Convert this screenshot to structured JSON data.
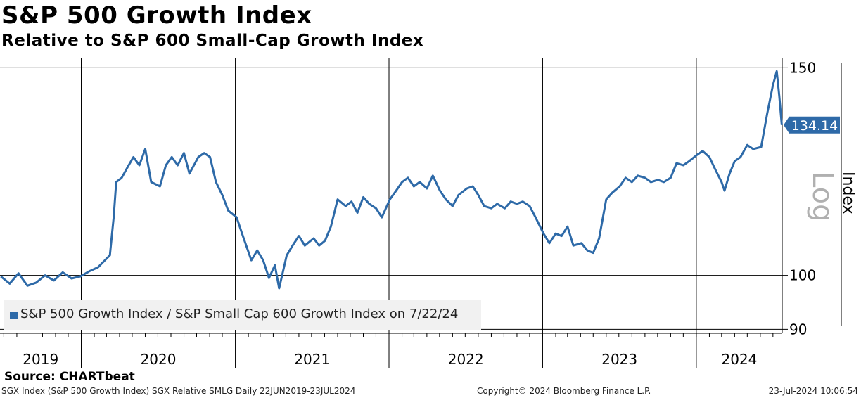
{
  "title": "S&P 500 Growth Index",
  "subtitle": "Relative to S&P 600 Small-Cap Growth Index",
  "source": "Source: CHARTbeat",
  "footer": {
    "left": "SGX Index (S&P 500 Growth Index) SGX Relative SMLG  Daily 22JUN2019-23JUL2024",
    "middle": "Copyright© 2024 Bloomberg Finance L.P.",
    "right": "23-Jul-2024 10:06:54"
  },
  "colors": {
    "series": "#2e6aa8",
    "last_label_bg": "#2e6aa8",
    "legend_bg": "#f1f1f1"
  },
  "chart_data": {
    "type": "line",
    "title": "S&P 500 Growth Index",
    "subtitle": "Relative to S&P 600 Small-Cap Growth Index",
    "ylabel": "Index",
    "scale_label": "Log",
    "y_scale": "log",
    "y_ticks": [
      90,
      100,
      150
    ],
    "ylim": [
      89.3,
      153
    ],
    "x_ticks": [
      "2019",
      "2020",
      "2021",
      "2022",
      "2023",
      "2024"
    ],
    "xlim": [
      "2019-06-22",
      "2024-07-23"
    ],
    "grid": true,
    "legend_position": "bottom-left",
    "last_value_label": "134.14",
    "series": [
      {
        "name": "S&P 500 Growth Index / S&P Small Cap 600 Growth Index on 7/22/24",
        "points": [
          [
            "2019-06-24",
            99.8
          ],
          [
            "2019-07-15",
            98.4
          ],
          [
            "2019-08-05",
            100.4
          ],
          [
            "2019-08-26",
            98.0
          ],
          [
            "2019-09-16",
            98.6
          ],
          [
            "2019-10-07",
            100.0
          ],
          [
            "2019-10-28",
            99.0
          ],
          [
            "2019-11-18",
            100.6
          ],
          [
            "2019-12-09",
            99.4
          ],
          [
            "2019-12-30",
            99.8
          ],
          [
            "2020-01-20",
            100.8
          ],
          [
            "2020-02-10",
            101.6
          ],
          [
            "2020-02-24",
            102.8
          ],
          [
            "2020-03-09",
            104.0
          ],
          [
            "2020-03-18",
            112.0
          ],
          [
            "2020-03-24",
            120.0
          ],
          [
            "2020-04-06",
            121.0
          ],
          [
            "2020-04-20",
            123.5
          ],
          [
            "2020-05-04",
            126.0
          ],
          [
            "2020-05-18",
            124.0
          ],
          [
            "2020-06-01",
            128.0
          ],
          [
            "2020-06-15",
            120.0
          ],
          [
            "2020-07-06",
            119.0
          ],
          [
            "2020-07-20",
            124.0
          ],
          [
            "2020-08-03",
            126.0
          ],
          [
            "2020-08-17",
            124.0
          ],
          [
            "2020-09-01",
            127.0
          ],
          [
            "2020-09-14",
            122.0
          ],
          [
            "2020-10-05",
            126.0
          ],
          [
            "2020-10-19",
            127.0
          ],
          [
            "2020-11-02",
            126.0
          ],
          [
            "2020-11-16",
            120.0
          ],
          [
            "2020-12-01",
            117.0
          ],
          [
            "2020-12-15",
            113.5
          ],
          [
            "2021-01-04",
            112.0
          ],
          [
            "2021-01-19",
            108.0
          ],
          [
            "2021-02-08",
            103.0
          ],
          [
            "2021-02-22",
            105.0
          ],
          [
            "2021-03-08",
            103.0
          ],
          [
            "2021-03-22",
            99.5
          ],
          [
            "2021-04-05",
            102.0
          ],
          [
            "2021-04-15",
            97.5
          ],
          [
            "2021-05-03",
            104.0
          ],
          [
            "2021-05-17",
            106.0
          ],
          [
            "2021-06-01",
            108.0
          ],
          [
            "2021-06-15",
            106.0
          ],
          [
            "2021-07-06",
            107.5
          ],
          [
            "2021-07-19",
            106.0
          ],
          [
            "2021-08-02",
            107.0
          ],
          [
            "2021-08-16",
            110.0
          ],
          [
            "2021-09-01",
            116.0
          ],
          [
            "2021-09-20",
            114.5
          ],
          [
            "2021-10-04",
            115.5
          ],
          [
            "2021-10-18",
            113.0
          ],
          [
            "2021-11-01",
            116.5
          ],
          [
            "2021-11-15",
            115.0
          ],
          [
            "2021-12-01",
            114.0
          ],
          [
            "2021-12-15",
            112.0
          ],
          [
            "2022-01-03",
            116.0
          ],
          [
            "2022-01-18",
            118.0
          ],
          [
            "2022-02-01",
            120.0
          ],
          [
            "2022-02-15",
            121.0
          ],
          [
            "2022-03-01",
            119.0
          ],
          [
            "2022-03-15",
            120.0
          ],
          [
            "2022-04-01",
            118.5
          ],
          [
            "2022-04-15",
            121.5
          ],
          [
            "2022-05-02",
            118.0
          ],
          [
            "2022-05-16",
            116.0
          ],
          [
            "2022-06-01",
            114.5
          ],
          [
            "2022-06-15",
            117.0
          ],
          [
            "2022-07-05",
            118.5
          ],
          [
            "2022-07-19",
            119.0
          ],
          [
            "2022-08-01",
            117.0
          ],
          [
            "2022-08-15",
            114.5
          ],
          [
            "2022-09-01",
            114.0
          ],
          [
            "2022-09-15",
            115.0
          ],
          [
            "2022-10-03",
            114.0
          ],
          [
            "2022-10-17",
            115.5
          ],
          [
            "2022-11-01",
            115.0
          ],
          [
            "2022-11-15",
            115.5
          ],
          [
            "2022-12-01",
            114.5
          ],
          [
            "2022-12-15",
            112.0
          ],
          [
            "2023-01-03",
            108.5
          ],
          [
            "2023-01-17",
            106.5
          ],
          [
            "2023-02-01",
            108.5
          ],
          [
            "2023-02-15",
            108.0
          ],
          [
            "2023-03-01",
            110.0
          ],
          [
            "2023-03-15",
            106.0
          ],
          [
            "2023-04-03",
            106.5
          ],
          [
            "2023-04-17",
            105.0
          ],
          [
            "2023-05-01",
            104.5
          ],
          [
            "2023-05-15",
            107.5
          ],
          [
            "2023-06-01",
            116.0
          ],
          [
            "2023-06-15",
            117.5
          ],
          [
            "2023-07-03",
            119.0
          ],
          [
            "2023-07-17",
            121.0
          ],
          [
            "2023-08-01",
            120.0
          ],
          [
            "2023-08-15",
            121.5
          ],
          [
            "2023-09-01",
            121.0
          ],
          [
            "2023-09-15",
            120.0
          ],
          [
            "2023-10-02",
            120.5
          ],
          [
            "2023-10-16",
            120.0
          ],
          [
            "2023-11-01",
            121.0
          ],
          [
            "2023-11-15",
            124.5
          ],
          [
            "2023-12-01",
            124.0
          ],
          [
            "2023-12-15",
            125.0
          ],
          [
            "2024-01-02",
            126.5
          ],
          [
            "2024-01-16",
            127.5
          ],
          [
            "2024-02-01",
            126.0
          ],
          [
            "2024-02-15",
            123.0
          ],
          [
            "2024-03-01",
            120.0
          ],
          [
            "2024-03-08",
            118.0
          ],
          [
            "2024-03-20",
            122.0
          ],
          [
            "2024-04-01",
            125.0
          ],
          [
            "2024-04-15",
            126.0
          ],
          [
            "2024-05-01",
            129.0
          ],
          [
            "2024-05-15",
            128.0
          ],
          [
            "2024-06-03",
            128.5
          ],
          [
            "2024-06-17",
            137.0
          ],
          [
            "2024-07-01",
            145.0
          ],
          [
            "2024-07-10",
            149.0
          ],
          [
            "2024-07-16",
            142.0
          ],
          [
            "2024-07-22",
            134.14
          ]
        ]
      }
    ]
  }
}
